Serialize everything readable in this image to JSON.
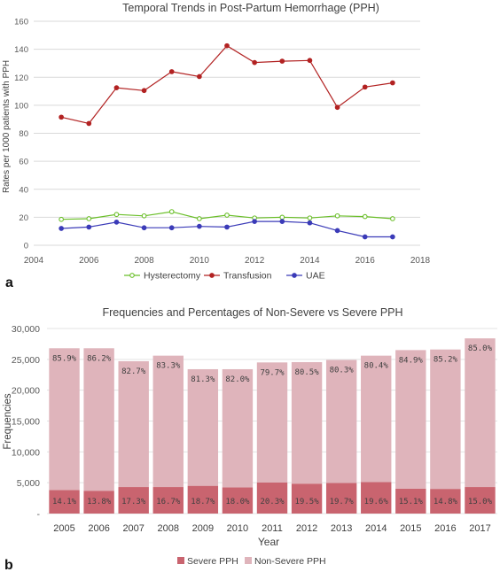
{
  "chart_data": [
    {
      "panel_label": "a",
      "type": "line",
      "title": "Temporal Trends in Post-Partum Hemorrhage (PPH)",
      "ylabel": "Rates per 1000 patients with PPH",
      "xlabel": "",
      "xlim": [
        2004,
        2018
      ],
      "ylim": [
        0,
        160
      ],
      "x_ticks": [
        2004,
        2006,
        2008,
        2010,
        2012,
        2014,
        2016,
        2018
      ],
      "y_ticks": [
        0,
        20,
        40,
        60,
        80,
        100,
        120,
        140,
        160
      ],
      "grid": true,
      "legend_position": "bottom",
      "x": [
        2005,
        2006,
        2007,
        2008,
        2009,
        2010,
        2011,
        2012,
        2013,
        2014,
        2015,
        2016,
        2017
      ],
      "series": [
        {
          "name": "Hysterectomy",
          "color": "#6BBF2A",
          "marker": "open-circle",
          "values": [
            18.5,
            19,
            22,
            21,
            24,
            19,
            21.5,
            19.5,
            20,
            19.5,
            21,
            20.5,
            19
          ]
        },
        {
          "name": "Transfusion",
          "color": "#B22222",
          "marker": "filled-circle",
          "values": [
            91.5,
            87,
            112.5,
            110.5,
            124,
            120.5,
            142.5,
            130.5,
            131.5,
            132,
            98.5,
            113,
            116
          ]
        },
        {
          "name": "UAE",
          "color": "#3B3BB8",
          "marker": "filled-circle",
          "values": [
            12,
            13,
            16.5,
            12.5,
            12.5,
            13.5,
            13,
            17,
            17,
            16,
            10.5,
            6,
            6
          ]
        }
      ]
    },
    {
      "panel_label": "b",
      "type": "bar",
      "stacked": true,
      "title": "Frequencies and Percentages of Non-Severe vs Severe PPH",
      "xlabel": "Year",
      "ylabel": "Frequencies",
      "ylim": [
        0,
        30000
      ],
      "y_tick_labels": [
        "-",
        "5,000",
        "10,000",
        "15,000",
        "20,000",
        "25,000",
        "30,000"
      ],
      "y_tick_values": [
        0,
        5000,
        10000,
        15000,
        20000,
        25000,
        30000
      ],
      "grid": true,
      "legend_position": "bottom",
      "categories": [
        "2005",
        "2006",
        "2007",
        "2008",
        "2009",
        "2010",
        "2011",
        "2012",
        "2013",
        "2014",
        "2015",
        "2016",
        "2017"
      ],
      "series": [
        {
          "name": "Severe PPH",
          "color": "#C9646F",
          "values": [
            3800,
            3700,
            4300,
            4300,
            4500,
            4250,
            5050,
            4850,
            4950,
            5100,
            4050,
            4000,
            4300
          ],
          "labels": [
            "14.1%",
            "13.8%",
            "17.3%",
            "16.7%",
            "18.7%",
            "18.0%",
            "20.3%",
            "19.5%",
            "19.7%",
            "19.6%",
            "15.1%",
            "14.8%",
            "15.0%"
          ]
        },
        {
          "name": "Non-Severe PPH",
          "color": "#DFB4BB",
          "values": [
            23000,
            23100,
            20400,
            21300,
            18900,
            19150,
            19450,
            19700,
            19950,
            20500,
            22450,
            22600,
            24100
          ],
          "labels": [
            "85.9%",
            "86.2%",
            "82.7%",
            "83.3%",
            "81.3%",
            "82.0%",
            "79.7%",
            "80.5%",
            "80.3%",
            "80.4%",
            "84.9%",
            "85.2%",
            "85.0%"
          ]
        }
      ]
    }
  ]
}
